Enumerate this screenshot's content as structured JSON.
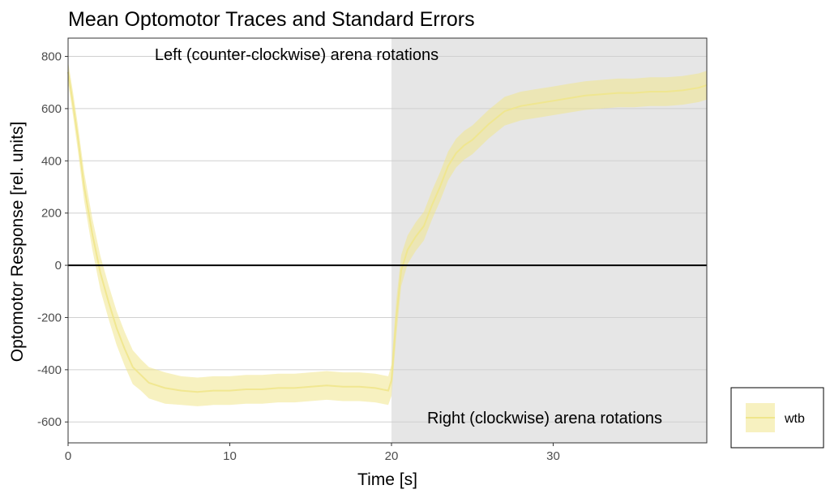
{
  "chart_data": {
    "type": "line",
    "title": "Mean Optomotor Traces and Standard Errors",
    "xlabel": "Time [s]",
    "ylabel": "Optomotor Response [rel. units]",
    "xlim": [
      0,
      39.5
    ],
    "ylim": [
      -680,
      870
    ],
    "x_ticks": [
      0,
      10,
      20,
      30
    ],
    "y_ticks": [
      -600,
      -400,
      -200,
      0,
      200,
      400,
      600,
      800
    ],
    "grid": true,
    "shaded_region": {
      "x_start": 20,
      "x_end": 39.5,
      "color": "#e6e6e6"
    },
    "zero_line": 0,
    "annotations": [
      {
        "text": "Left (counter-clockwise) arena rotations"
      },
      {
        "text": "Right (clockwise) arena rotations"
      }
    ],
    "legend": {
      "position": "bottom-right",
      "entries": [
        "wtb"
      ]
    },
    "series": [
      {
        "name": "wtb",
        "color": "#f0e68c",
        "x": [
          0,
          0.3,
          0.6,
          1,
          1.5,
          2,
          2.5,
          3,
          3.5,
          4,
          4.5,
          5,
          6,
          7,
          8,
          9,
          10,
          11,
          12,
          13,
          14,
          15,
          16,
          17,
          18,
          19,
          19.8,
          20,
          20.3,
          20.6,
          21,
          21.5,
          22,
          22.5,
          23,
          23.5,
          24,
          24.5,
          25,
          26,
          27,
          28,
          29,
          30,
          31,
          32,
          33,
          34,
          35,
          36,
          37,
          38,
          39,
          39.5
        ],
        "y": [
          740,
          620,
          490,
          300,
          120,
          -30,
          -140,
          -240,
          -320,
          -390,
          -420,
          -450,
          -470,
          -480,
          -485,
          -480,
          -480,
          -475,
          -475,
          -470,
          -470,
          -465,
          -460,
          -465,
          -465,
          -470,
          -480,
          -440,
          -200,
          -20,
          60,
          110,
          150,
          230,
          300,
          380,
          430,
          460,
          480,
          540,
          590,
          610,
          620,
          630,
          640,
          650,
          655,
          660,
          660,
          665,
          665,
          670,
          680,
          690
        ],
        "se": [
          40,
          45,
          50,
          55,
          60,
          65,
          65,
          65,
          65,
          65,
          60,
          60,
          60,
          55,
          55,
          55,
          55,
          55,
          55,
          55,
          55,
          55,
          55,
          55,
          55,
          55,
          55,
          60,
          70,
          60,
          55,
          55,
          55,
          55,
          55,
          55,
          55,
          55,
          55,
          55,
          55,
          55,
          55,
          55,
          55,
          55,
          55,
          55,
          55,
          55,
          55,
          55,
          55,
          55
        ]
      }
    ]
  }
}
